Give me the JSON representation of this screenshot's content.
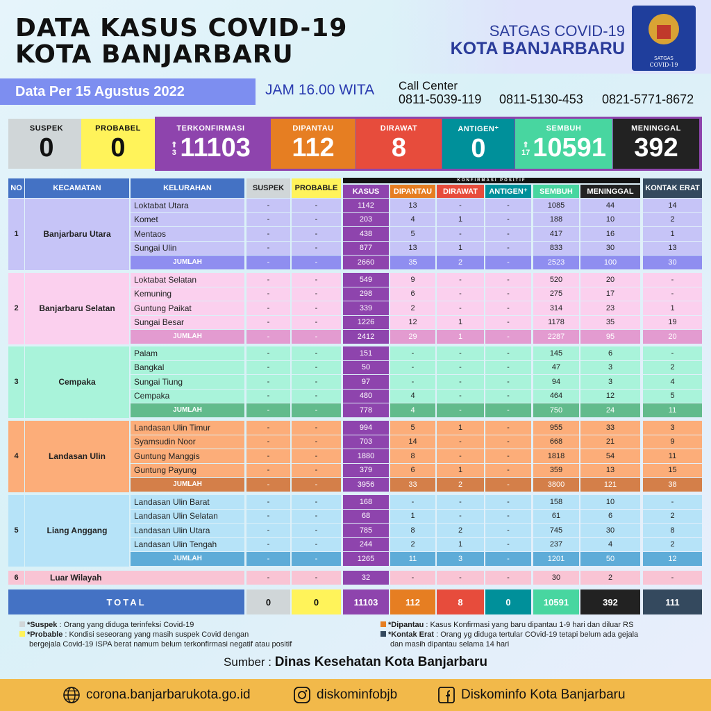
{
  "header": {
    "title_line1": "DATA KASUS COVID-19",
    "title_line2": "KOTA BANJARBARU",
    "org_line1": "SATGAS COVID-19",
    "org_line2": "KOTA BANJARBARU",
    "logo_text": "SATUAN TUGAS PENANGANAN COVID-19",
    "date": "Data Per 15 Agustus 2022",
    "time": "JAM 16.00 WITA",
    "call_center_label": "Call Center",
    "phones": [
      "0811-5039-119",
      "0811-5130-453",
      "0821-5771-8672"
    ]
  },
  "summary": [
    {
      "label": "SUSPEK",
      "value": "0",
      "bg": "#d0d6d8",
      "fg": "#111"
    },
    {
      "label": "PROBABEL",
      "value": "0",
      "bg": "#fff35a",
      "fg": "#111"
    },
    {
      "label": "TERKONFIRMASI",
      "value": "11103",
      "increase": "3",
      "bg": "#8e44ad",
      "fg": "#fff"
    },
    {
      "label": "DIPANTAU",
      "value": "112",
      "bg": "#e67e22",
      "fg": "#fff"
    },
    {
      "label": "DIRAWAT",
      "value": "8",
      "bg": "#e74c3c",
      "fg": "#fff"
    },
    {
      "label": "ANTIGEN⁺",
      "value": "0",
      "bg": "#00909a",
      "fg": "#fff"
    },
    {
      "label": "SEMBUH",
      "value": "10591",
      "increase": "17",
      "bg": "#48d6a0",
      "fg": "#fff"
    },
    {
      "label": "MENINGGAL",
      "value": "392",
      "bg": "#222222",
      "fg": "#fff"
    }
  ],
  "table": {
    "group_header": "KONFIRMASI POSITIF",
    "columns": [
      "NO",
      "KECAMATAN",
      "KELURAHAN",
      "SUSPEK",
      "PROBABLE",
      "KASUS",
      "DIPANTAU",
      "DIRAWAT",
      "ANTIGEN⁺",
      "SEMBUH",
      "MENINGGAL",
      "KONTAK ERAT"
    ],
    "column_colors": [
      "#4472c4",
      "#4472c4",
      "#4472c4",
      "#d0d6d8",
      "#fff35a",
      "#8e44ad",
      "#e67e22",
      "#e74c3c",
      "#00909a",
      "#48d6a0",
      "#222222",
      "#34495e"
    ],
    "jumlah_label": "JUMLAH",
    "groups": [
      {
        "no": "1",
        "kecamatan": "Banjarbaru Utara",
        "bg": "#c6c4f7",
        "sum_bg": "#8f8ef0",
        "rows": [
          [
            "Loktabat Utara",
            "-",
            "-",
            "1142",
            "13",
            "-",
            "-",
            "1085",
            "44",
            "14"
          ],
          [
            "Komet",
            "-",
            "-",
            "203",
            "4",
            "1",
            "-",
            "188",
            "10",
            "2"
          ],
          [
            "Mentaos",
            "-",
            "-",
            "438",
            "5",
            "-",
            "-",
            "417",
            "16",
            "1"
          ],
          [
            "Sungai Ulin",
            "-",
            "-",
            "877",
            "13",
            "1",
            "-",
            "833",
            "30",
            "13"
          ]
        ],
        "jumlah": [
          "-",
          "-",
          "2660",
          "35",
          "2",
          "-",
          "2523",
          "100",
          "30"
        ]
      },
      {
        "no": "2",
        "kecamatan": "Banjarbaru Selatan",
        "bg": "#fbd0ee",
        "sum_bg": "#e39bd0",
        "rows": [
          [
            "Loktabat Selatan",
            "-",
            "-",
            "549",
            "9",
            "-",
            "-",
            "520",
            "20",
            "-"
          ],
          [
            "Kemuning",
            "-",
            "-",
            "298",
            "6",
            "-",
            "-",
            "275",
            "17",
            "-"
          ],
          [
            "Guntung Paikat",
            "-",
            "-",
            "339",
            "2",
            "-",
            "-",
            "314",
            "23",
            "1"
          ],
          [
            "Sungai Besar",
            "-",
            "-",
            "1226",
            "12",
            "1",
            "-",
            "1178",
            "35",
            "19"
          ]
        ],
        "jumlah": [
          "-",
          "-",
          "2412",
          "29",
          "1",
          "-",
          "2287",
          "95",
          "20"
        ]
      },
      {
        "no": "3",
        "kecamatan": "Cempaka",
        "bg": "#a9f3da",
        "sum_bg": "#62bb8c",
        "rows": [
          [
            "Palam",
            "-",
            "-",
            "151",
            "-",
            "-",
            "-",
            "145",
            "6",
            "-"
          ],
          [
            "Bangkal",
            "-",
            "-",
            "50",
            "-",
            "-",
            "-",
            "47",
            "3",
            "2"
          ],
          [
            "Sungai Tiung",
            "-",
            "-",
            "97",
            "-",
            "-",
            "-",
            "94",
            "3",
            "4"
          ],
          [
            "Cempaka",
            "-",
            "-",
            "480",
            "4",
            "-",
            "-",
            "464",
            "12",
            "5"
          ]
        ],
        "jumlah": [
          "-",
          "-",
          "778",
          "4",
          "-",
          "-",
          "750",
          "24",
          "11"
        ]
      },
      {
        "no": "4",
        "kecamatan": "Landasan Ulin",
        "bg": "#fcad79",
        "sum_bg": "#d47f49",
        "rows": [
          [
            "Landasan Ulin Timur",
            "-",
            "-",
            "994",
            "5",
            "1",
            "-",
            "955",
            "33",
            "3"
          ],
          [
            "Syamsudin Noor",
            "-",
            "-",
            "703",
            "14",
            "-",
            "-",
            "668",
            "21",
            "9"
          ],
          [
            "Guntung Manggis",
            "-",
            "-",
            "1880",
            "8",
            "-",
            "-",
            "1818",
            "54",
            "11"
          ],
          [
            "Guntung Payung",
            "-",
            "-",
            "379",
            "6",
            "1",
            "-",
            "359",
            "13",
            "15"
          ]
        ],
        "jumlah": [
          "-",
          "-",
          "3956",
          "33",
          "2",
          "-",
          "3800",
          "121",
          "38"
        ]
      },
      {
        "no": "5",
        "kecamatan": "Liang Anggang",
        "bg": "#b6e3f8",
        "sum_bg": "#5eacd8",
        "rows": [
          [
            "Landasan Ulin Barat",
            "-",
            "-",
            "168",
            "-",
            "-",
            "-",
            "158",
            "10",
            "-"
          ],
          [
            "Landasan Ulin Selatan",
            "-",
            "-",
            "68",
            "1",
            "-",
            "-",
            "61",
            "6",
            "2"
          ],
          [
            "Landasan Ulin Utara",
            "-",
            "-",
            "785",
            "8",
            "2",
            "-",
            "745",
            "30",
            "8"
          ],
          [
            "Landasan Ulin Tengah",
            "-",
            "-",
            "244",
            "2",
            "1",
            "-",
            "237",
            "4",
            "2"
          ]
        ],
        "jumlah": [
          "-",
          "-",
          "1265",
          "11",
          "3",
          "-",
          "1201",
          "50",
          "12"
        ]
      }
    ],
    "luar": {
      "no": "6",
      "kecamatan": "Luar Wilayah",
      "bg": "#f9c4d4",
      "values": [
        "-",
        "-",
        "32",
        "-",
        "-",
        "-",
        "30",
        "2",
        "-"
      ]
    },
    "total": {
      "label": "TOTAL",
      "values": [
        "0",
        "0",
        "11103",
        "112",
        "8",
        "0",
        "10591",
        "392",
        "111"
      ]
    }
  },
  "legend": {
    "suspek_term": "*Suspek",
    "suspek_def": " : Orang yang diduga terinfeksi Covid-19",
    "probable_term": "*Probable",
    "probable_def": " : Kondisi seseorang yang masih suspek Covid dengan",
    "probable_def2": "bergejala Covid-19 ISPA berat namum belum terkonfirmasi negatif atau positif",
    "dipantau_term": "*Dipantau",
    "dipantau_def": " : Kasus Konfirmasi yang baru dipantau 1-9 hari dan diluar RS",
    "kontak_term": "*Kontak Erat",
    "kontak_def": " : Orang yg diduga tertular COvid-19 tetapi belum ada gejala",
    "kontak_def2": "dan masih dipantau selama 14 hari"
  },
  "source": {
    "label": "Sumber : ",
    "value": "Dinas Kesehatan Kota Banjarbaru"
  },
  "footer": {
    "website": "corona.banjarbarukota.go.id",
    "instagram": "diskominfobjb",
    "facebook": "Diskominfo Kota Banjarbaru"
  }
}
